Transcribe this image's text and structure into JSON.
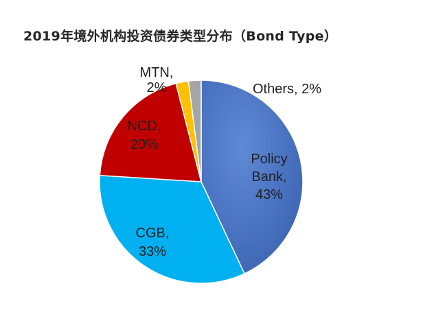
{
  "chart_data": {
    "type": "pie",
    "title": "2019年境外机构投资债券类型分布（Bond Type）",
    "slices": [
      {
        "name": "Policy Bank",
        "value": 43,
        "label_lines": [
          "Policy",
          "Bank,",
          "43%"
        ],
        "color": "#4472C4"
      },
      {
        "name": "CGB",
        "value": 33,
        "label_lines": [
          "CGB,",
          "33%"
        ],
        "color": "#00B0F0"
      },
      {
        "name": "NCD",
        "value": 20,
        "label_lines": [
          "NCD,",
          "20%"
        ],
        "color": "#C00000"
      },
      {
        "name": "MTN",
        "value": 2,
        "label_lines": [
          "MTN,",
          "2%"
        ],
        "color": "#FFC000"
      },
      {
        "name": "Others",
        "value": 2,
        "label_lines": [
          "Others, 2%"
        ],
        "color": "#A5A5A5"
      }
    ],
    "legend": "none",
    "data_labels": "category and percent"
  }
}
